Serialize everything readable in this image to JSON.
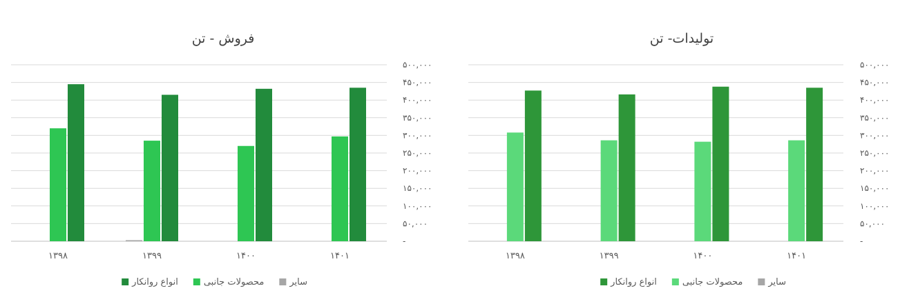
{
  "chart_data": [
    {
      "type": "bar",
      "title": "فروش - تن",
      "categories": [
        "۱۳۹۸",
        "۱۳۹۹",
        "۱۴۰۰",
        "۱۴۰۱"
      ],
      "y_tick_labels": [
        "-",
        "۵۰,۰۰۰",
        "۱۰۰,۰۰۰",
        "۱۵۰,۰۰۰",
        "۲۰۰,۰۰۰",
        "۲۵۰,۰۰۰",
        "۳۰۰,۰۰۰",
        "۳۵۰,۰۰۰",
        "۴۰۰,۰۰۰",
        "۴۵۰,۰۰۰",
        "۵۰۰,۰۰۰"
      ],
      "ylim": [
        0,
        500000
      ],
      "y_axis_side": "right",
      "grid": true,
      "legend_position": "bottom",
      "series": [
        {
          "name": "سایر",
          "color": "#a6a6a6",
          "values": [
            0,
            3000,
            0,
            0
          ]
        },
        {
          "name": "محصولات جانبی",
          "color": "#2ec653",
          "values": [
            320000,
            285000,
            270000,
            297000
          ]
        },
        {
          "name": "انواع روانکار",
          "color": "#228b3c",
          "values": [
            445000,
            415000,
            432000,
            435000
          ]
        }
      ]
    },
    {
      "type": "bar",
      "title": "تولیدات- تن",
      "categories": [
        "۱۳۹۸",
        "۱۳۹۹",
        "۱۴۰۰",
        "۱۴۰۱"
      ],
      "y_tick_labels": [
        "-",
        "۵۰,۰۰۰",
        "۱۰۰,۰۰۰",
        "۱۵۰,۰۰۰",
        "۲۰۰,۰۰۰",
        "۲۵۰,۰۰۰",
        "۳۰۰,۰۰۰",
        "۳۵۰,۰۰۰",
        "۴۰۰,۰۰۰",
        "۴۵۰,۰۰۰",
        "۵۰۰,۰۰۰"
      ],
      "ylim": [
        0,
        500000
      ],
      "y_axis_side": "right",
      "grid": true,
      "legend_position": "bottom",
      "series": [
        {
          "name": "سایر",
          "color": "#a6a6a6",
          "values": [
            0,
            0,
            0,
            0
          ]
        },
        {
          "name": "محصولات جانبی",
          "color": "#5bd97a",
          "values": [
            308000,
            286000,
            282000,
            286000
          ]
        },
        {
          "name": "انواع روانکار",
          "color": "#2e9639",
          "values": [
            427000,
            416000,
            438000,
            435000
          ]
        }
      ]
    }
  ]
}
